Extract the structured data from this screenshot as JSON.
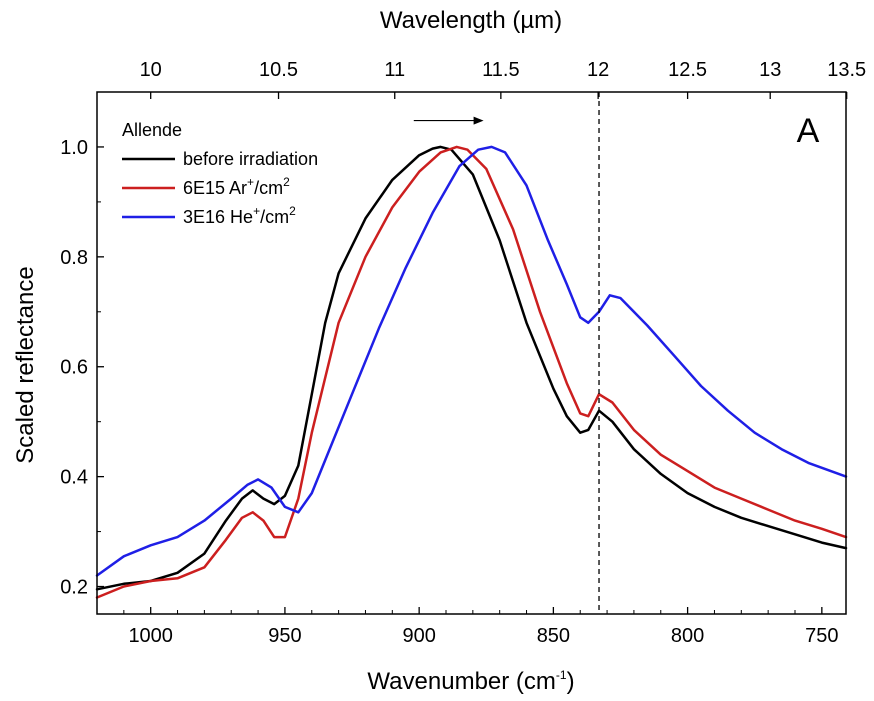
{
  "chart_data": {
    "type": "line",
    "panel_label": "A",
    "xlabel": {
      "main": "Wavenumber (cm",
      "sup": "-1",
      "tail": ")"
    },
    "ylabel": "Scaled reflectance",
    "top_axis_label": "Wavelength (µm)",
    "xlim": [
      1020,
      741
    ],
    "x_reversed": true,
    "ylim": [
      0.15,
      1.1
    ],
    "x_ticks": [
      1000,
      950,
      900,
      850,
      800,
      750
    ],
    "x_tick_labels": [
      "1000",
      "950",
      "900",
      "850",
      "800",
      "750"
    ],
    "y_ticks": [
      0.2,
      0.4,
      0.6,
      0.8,
      1.0
    ],
    "y_tick_labels": [
      "0.2",
      "0.4",
      "0.6",
      "0.8",
      "1.0"
    ],
    "top_ticks_um": [
      10,
      10.5,
      11,
      11.5,
      12,
      12.5,
      13,
      13.5
    ],
    "top_tick_labels": [
      "10",
      "10.5",
      "11",
      "11.5",
      "12",
      "12.5",
      "13",
      "13.5"
    ],
    "vline_x": 833,
    "arrow": {
      "x_start": 902,
      "x_end": 876,
      "y": 1.048
    },
    "legend": {
      "title": "Allende",
      "position": "top-left",
      "entries": [
        {
          "main": "before irradiation",
          "sup": "",
          "tail": ""
        },
        {
          "main": "6E15 Ar",
          "sup": "+",
          "tail": "/cm",
          "sup2": "2"
        },
        {
          "main": "3E16 He",
          "sup": "+",
          "tail": "/cm",
          "sup2": "2"
        }
      ]
    },
    "series": [
      {
        "name": "before irradiation",
        "color": "#000000",
        "x": [
          1020,
          1010,
          1000,
          990,
          980,
          972,
          966,
          962,
          958,
          954,
          950,
          945,
          940,
          935,
          930,
          920,
          910,
          900,
          895,
          892,
          888,
          880,
          870,
          860,
          850,
          845,
          840,
          837,
          833,
          828,
          820,
          810,
          800,
          790,
          780,
          770,
          760,
          750,
          741
        ],
        "y": [
          0.195,
          0.205,
          0.21,
          0.225,
          0.26,
          0.32,
          0.36,
          0.375,
          0.36,
          0.35,
          0.365,
          0.42,
          0.55,
          0.68,
          0.77,
          0.87,
          0.94,
          0.985,
          0.997,
          1.0,
          0.995,
          0.95,
          0.83,
          0.68,
          0.56,
          0.51,
          0.48,
          0.485,
          0.52,
          0.5,
          0.45,
          0.405,
          0.37,
          0.345,
          0.325,
          0.31,
          0.295,
          0.28,
          0.27
        ]
      },
      {
        "name": "6E15 Ar+/cm2",
        "color": "#cc1f1f",
        "x": [
          1020,
          1010,
          1000,
          990,
          980,
          972,
          966,
          962,
          958,
          954,
          950,
          945,
          940,
          930,
          920,
          910,
          900,
          892,
          886,
          882,
          875,
          865,
          855,
          845,
          840,
          837,
          833,
          828,
          820,
          810,
          800,
          790,
          780,
          770,
          760,
          750,
          741
        ],
        "y": [
          0.18,
          0.2,
          0.21,
          0.215,
          0.235,
          0.285,
          0.325,
          0.335,
          0.32,
          0.29,
          0.29,
          0.36,
          0.48,
          0.68,
          0.8,
          0.89,
          0.955,
          0.99,
          1.0,
          0.995,
          0.96,
          0.85,
          0.7,
          0.57,
          0.515,
          0.51,
          0.55,
          0.535,
          0.485,
          0.44,
          0.41,
          0.38,
          0.36,
          0.34,
          0.32,
          0.305,
          0.29
        ]
      },
      {
        "name": "3E16 He+/cm2",
        "color": "#1f1fe6",
        "x": [
          1020,
          1010,
          1000,
          990,
          980,
          970,
          964,
          960,
          955,
          950,
          945,
          940,
          935,
          925,
          915,
          905,
          895,
          885,
          878,
          873,
          868,
          860,
          852,
          845,
          840,
          837,
          833,
          829,
          825,
          815,
          805,
          795,
          785,
          775,
          765,
          755,
          741
        ],
        "y": [
          0.22,
          0.255,
          0.275,
          0.29,
          0.32,
          0.36,
          0.385,
          0.395,
          0.38,
          0.345,
          0.335,
          0.37,
          0.43,
          0.55,
          0.67,
          0.78,
          0.88,
          0.965,
          0.995,
          1.0,
          0.99,
          0.93,
          0.83,
          0.75,
          0.69,
          0.68,
          0.7,
          0.73,
          0.725,
          0.675,
          0.62,
          0.565,
          0.52,
          0.48,
          0.45,
          0.425,
          0.4
        ]
      }
    ]
  }
}
